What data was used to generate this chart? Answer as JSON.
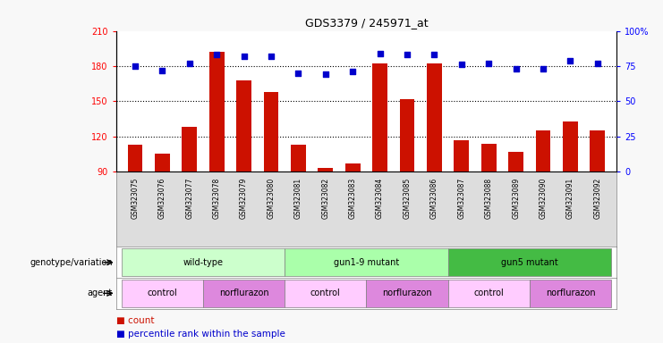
{
  "title": "GDS3379 / 245971_at",
  "samples": [
    "GSM323075",
    "GSM323076",
    "GSM323077",
    "GSM323078",
    "GSM323079",
    "GSM323080",
    "GSM323081",
    "GSM323082",
    "GSM323083",
    "GSM323084",
    "GSM323085",
    "GSM323086",
    "GSM323087",
    "GSM323088",
    "GSM323089",
    "GSM323090",
    "GSM323091",
    "GSM323092"
  ],
  "bar_values": [
    113,
    105,
    128,
    192,
    168,
    158,
    113,
    93,
    97,
    182,
    152,
    182,
    117,
    114,
    107,
    125,
    133,
    125
  ],
  "dot_values": [
    75,
    72,
    77,
    83,
    82,
    82,
    70,
    69,
    71,
    84,
    83,
    83,
    76,
    77,
    73,
    73,
    79,
    77
  ],
  "ymin": 90,
  "ymax": 210,
  "yticks_left": [
    90,
    120,
    150,
    180,
    210
  ],
  "yticks_right_vals": [
    0,
    25,
    50,
    75,
    100
  ],
  "yticks_right_labels": [
    "0",
    "25",
    "50",
    "75",
    "100%"
  ],
  "bar_color": "#cc1100",
  "dot_color": "#0000cc",
  "bg_color": "#ffffff",
  "fig_bg": "#f8f8f8",
  "genotype_groups": [
    {
      "label": "wild-type",
      "start": 0,
      "end": 6,
      "color": "#ccffcc"
    },
    {
      "label": "gun1-9 mutant",
      "start": 6,
      "end": 12,
      "color": "#aaffaa"
    },
    {
      "label": "gun5 mutant",
      "start": 12,
      "end": 18,
      "color": "#44bb44"
    }
  ],
  "agent_groups": [
    {
      "label": "control",
      "start": 0,
      "end": 3,
      "color": "#ffccff"
    },
    {
      "label": "norflurazon",
      "start": 3,
      "end": 6,
      "color": "#dd88dd"
    },
    {
      "label": "control",
      "start": 6,
      "end": 9,
      "color": "#ffccff"
    },
    {
      "label": "norflurazon",
      "start": 9,
      "end": 12,
      "color": "#dd88dd"
    },
    {
      "label": "control",
      "start": 12,
      "end": 15,
      "color": "#ffccff"
    },
    {
      "label": "norflurazon",
      "start": 15,
      "end": 18,
      "color": "#dd88dd"
    }
  ]
}
